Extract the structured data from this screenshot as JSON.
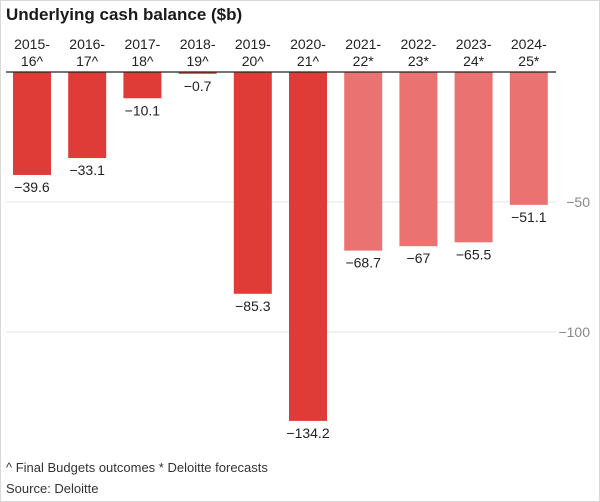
{
  "chart_data": {
    "type": "bar",
    "title": "Underlying cash balance ($b)",
    "categories": [
      [
        "2015-",
        "16^"
      ],
      [
        "2016-",
        "17^"
      ],
      [
        "2017-",
        "18^"
      ],
      [
        "2018-",
        "19^"
      ],
      [
        "2019-",
        "20^"
      ],
      [
        "2020-",
        "21^"
      ],
      [
        "2021-",
        "22*"
      ],
      [
        "2022-",
        "23*"
      ],
      [
        "2023-",
        "24*"
      ],
      [
        "2024-",
        "25*"
      ]
    ],
    "values": [
      -39.6,
      -33.1,
      -10.1,
      -0.7,
      -85.3,
      -134.2,
      -68.7,
      -67,
      -65.5,
      -51.1
    ],
    "value_labels": [
      "−39.6",
      "−33.1",
      "−10.1",
      "−0.7",
      "−85.3",
      "−134.2",
      "−68.7",
      "−67",
      "−65.5",
      "−51.1"
    ],
    "series_type": [
      "actual",
      "actual",
      "actual",
      "actual",
      "actual",
      "actual",
      "forecast",
      "forecast",
      "forecast",
      "forecast"
    ],
    "ylim": [
      -145,
      0
    ],
    "yticks": [
      -50,
      -100
    ],
    "ytick_labels": [
      "−50",
      "−100"
    ],
    "xlabel": "",
    "ylabel": "",
    "grid": true,
    "colors": {
      "actual": "#e03c37",
      "forecast": "#ea7371",
      "grid": "#e6e6e6",
      "axis": "#222222"
    }
  },
  "footnote": "^ Final Budgets outcomes * Deloitte forecasts",
  "source": "Source: Deloitte"
}
